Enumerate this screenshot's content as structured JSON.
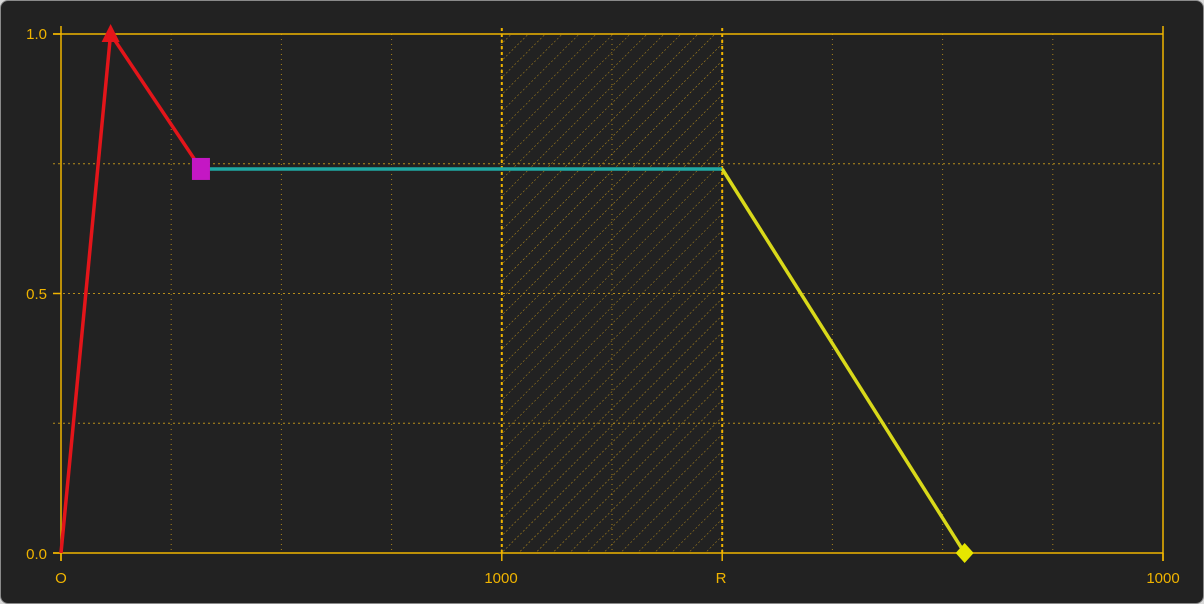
{
  "chart_data": {
    "type": "line",
    "title": "",
    "xlabel": "",
    "ylabel": "",
    "x_tick_labels": [
      "O",
      "1000",
      "R",
      "1000"
    ],
    "y_tick_labels": [
      "0.0",
      "0.5",
      "1.0"
    ],
    "ylim": [
      0,
      1
    ],
    "grid": true,
    "colors": {
      "background": "#222222",
      "axis": "#f0b400",
      "grid": "#c99a1a",
      "attack": "#e3151a",
      "decay_marker": "#c417c4",
      "sustain": "#1fa9a4",
      "release": "#d9d91a",
      "release_marker": "#e6e600"
    },
    "series": [
      {
        "segment": "attack",
        "x": [
          0,
          45
        ],
        "y": [
          0.0,
          1.0
        ]
      },
      {
        "segment": "decay",
        "x": [
          45,
          127
        ],
        "y": [
          1.0,
          0.74
        ]
      },
      {
        "segment": "sustain",
        "x": [
          127,
          600
        ],
        "y": [
          0.74,
          0.74
        ]
      },
      {
        "segment": "release",
        "x": [
          600,
          820
        ],
        "y": [
          0.74,
          0.0
        ]
      }
    ],
    "markers": [
      {
        "shape": "triangle",
        "x": 45,
        "y": 1.0,
        "color": "#e3151a"
      },
      {
        "shape": "square",
        "x": 127,
        "y": 0.74,
        "color": "#c417c4"
      },
      {
        "shape": "diamond",
        "x": 820,
        "y": 0.0,
        "color": "#e6e600"
      }
    ],
    "hatched_region": {
      "x_start": 400,
      "x_end": 600
    },
    "x_range": [
      0,
      1000
    ]
  }
}
